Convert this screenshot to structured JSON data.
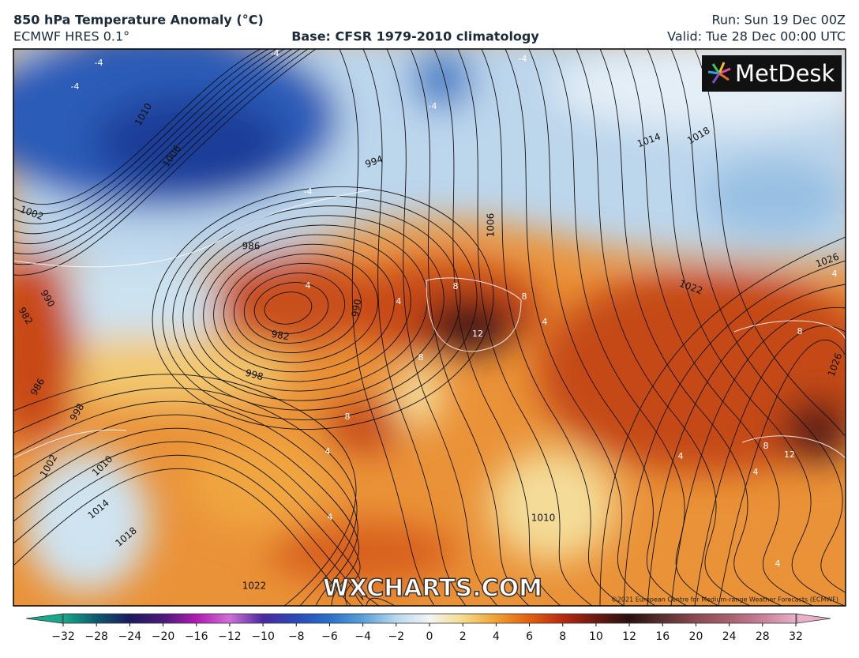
{
  "header": {
    "title": "850 hPa Temperature Anomaly (°C)",
    "model": "ECMWF HRES 0.1°",
    "base": "Base: CFSR 1979-2010 climatology",
    "run": "Run: Sun 19 Dec 00Z",
    "valid": "Valid: Tue 28 Dec 00:00 UTC"
  },
  "logo": "MetDesk",
  "watermark": "WXCHARTS.COM",
  "copyright": "©2021 European Centre for Medium-range Weather Forecasts (ECMWF)",
  "map": {
    "isobar_labels": [
      1010,
      1006,
      1002,
      994,
      986,
      982,
      998,
      990,
      982,
      986,
      998,
      1002,
      1010,
      1014,
      1018,
      1022,
      1010,
      1014,
      1018,
      1022,
      1026,
      1026,
      1006,
      990
    ],
    "anomaly_labels": [
      -4,
      -4,
      -4,
      -4,
      -4,
      -4,
      4,
      8,
      8,
      12,
      8,
      8,
      4,
      4,
      8,
      8,
      12,
      4,
      4,
      4,
      4,
      4,
      4
    ]
  },
  "colorbar": {
    "ticks": [
      {
        "value": -32,
        "label": "−32"
      },
      {
        "value": -28,
        "label": "−28"
      },
      {
        "value": -24,
        "label": "−24"
      },
      {
        "value": -20,
        "label": "−20"
      },
      {
        "value": -16,
        "label": "−16"
      },
      {
        "value": -12,
        "label": "−12"
      },
      {
        "value": -10,
        "label": "−10"
      },
      {
        "value": -8,
        "label": "−8"
      },
      {
        "value": -6,
        "label": "−6"
      },
      {
        "value": -4,
        "label": "−4"
      },
      {
        "value": -2,
        "label": "−2"
      },
      0,
      2,
      4,
      6,
      8,
      10,
      12,
      16,
      20,
      24,
      28,
      32
    ],
    "colors": [
      "#1aa88a",
      "#0e5a6e",
      "#1a1a5e",
      "#4a1a7a",
      "#b01ab0",
      "#d070d8",
      "#4a2aa0",
      "#2a4ab8",
      "#2a70c8",
      "#5aa0d8",
      "#b8d8ee",
      "#f4f4f4",
      "#f5dc8c",
      "#f0a030",
      "#e06010",
      "#b82a10",
      "#6a1a10",
      "#2a1010",
      "#5a3030",
      "#8a4a50",
      "#a86070",
      "#c88098",
      "#e8b0c8"
    ]
  }
}
